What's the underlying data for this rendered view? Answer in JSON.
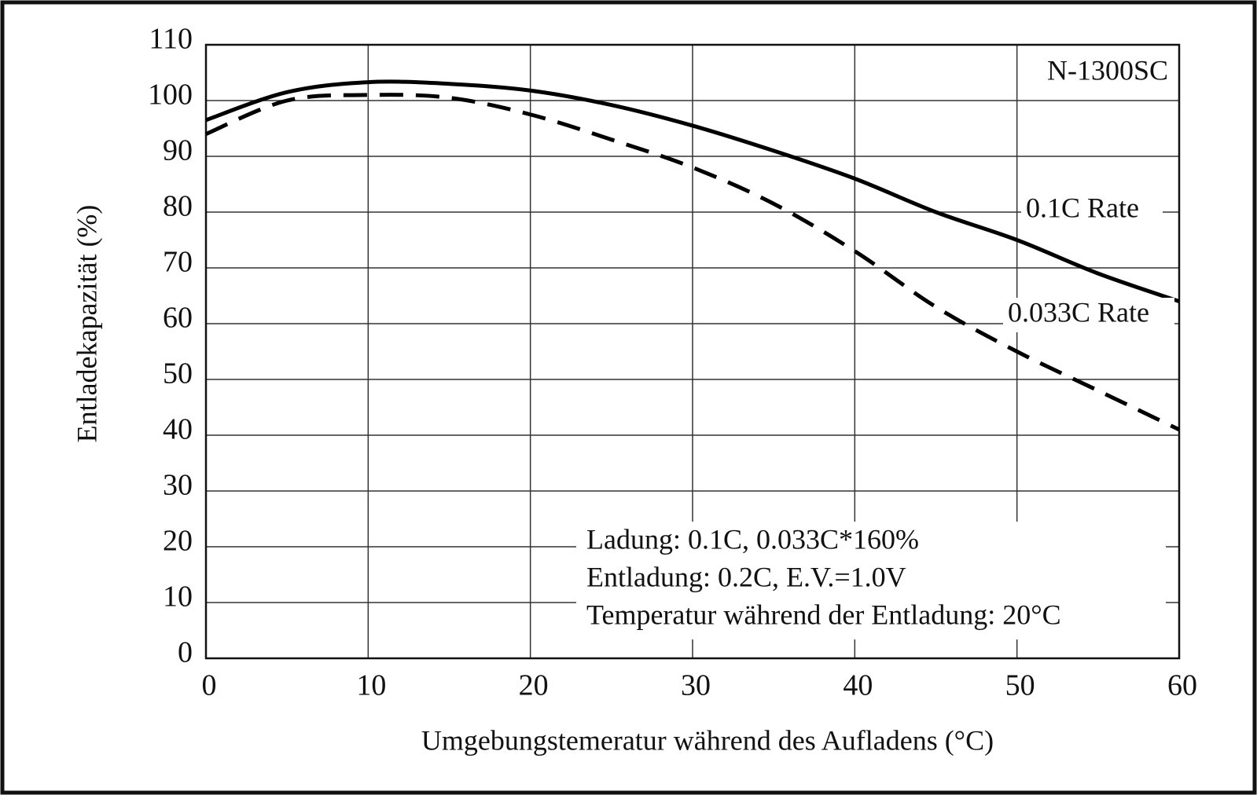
{
  "chart_data": {
    "type": "line",
    "xlabel": "Umgebungstemeratur während des Aufladens (°C)",
    "ylabel": "Entladekapazität (%)",
    "model_label": "N-1300SC",
    "notes": [
      "Ladung: 0.1C, 0.033C*160%",
      "Entladung: 0.2C, E.V.=1.0V",
      "Temperatur während der Entladung: 20°C"
    ],
    "x": [
      0,
      5,
      10,
      15,
      20,
      25,
      30,
      35,
      40,
      45,
      50,
      55,
      60
    ],
    "series": [
      {
        "name": "0.1C Rate",
        "color": "#000000",
        "style": "solid",
        "values": [
          96.5,
          101.5,
          103.3,
          103,
          101.8,
          99.2,
          95.5,
          91,
          86,
          80,
          75,
          69,
          64
        ]
      },
      {
        "name": "0.033C Rate",
        "color": "#000000",
        "style": "dashed",
        "values": [
          94,
          100,
          101,
          100.5,
          97.5,
          93,
          88,
          81.5,
          73,
          63,
          55,
          48,
          41
        ]
      }
    ],
    "xlim": [
      0,
      60
    ],
    "xticks": [
      0,
      10,
      20,
      30,
      40,
      50,
      60
    ],
    "ylim": [
      0,
      110
    ],
    "yticks": [
      0,
      10,
      20,
      30,
      40,
      50,
      60,
      70,
      80,
      90,
      100,
      110
    ],
    "grid": true
  }
}
